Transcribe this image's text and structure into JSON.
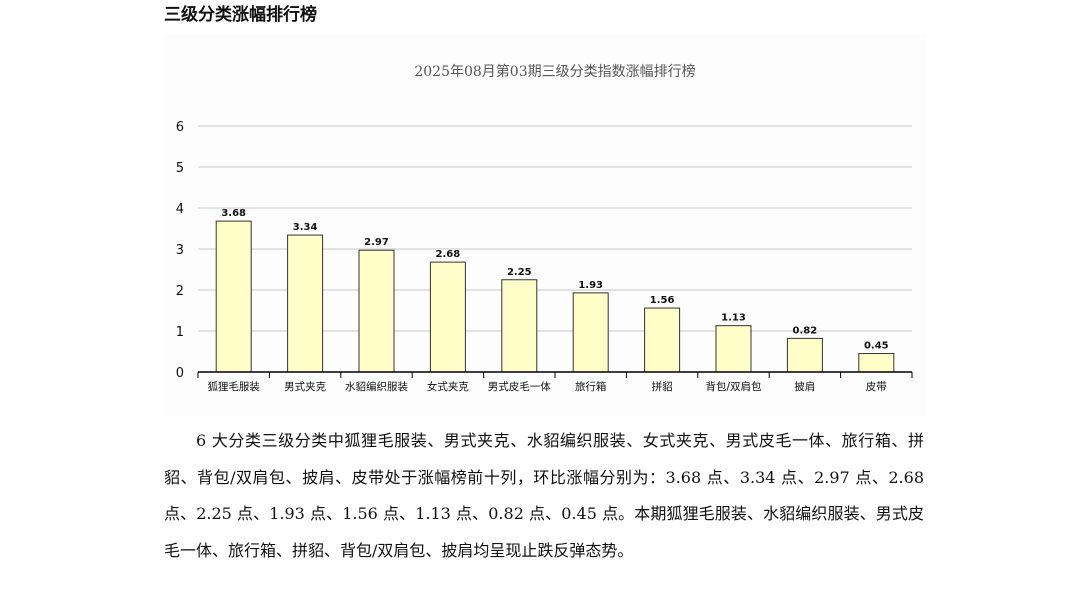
{
  "section_title": "三级分类涨幅排行榜",
  "paragraph": "6 大分类三级分类中狐狸毛服装、男式夹克、水貂编织服装、女式夹克、男式皮毛一体、旅行箱、拼貂、背包/双肩包、披肩、皮带处于涨幅榜前十列，环比涨幅分别为：3.68 点、3.34 点、2.97 点、2.68 点、2.25 点、1.93 点、1.56 点、1.13 点、0.82 点、0.45 点。本期狐狸毛服装、水貂编织服装、男式皮毛一体、旅行箱、拼貂、背包/双肩包、披肩均呈现止跌反弹态势。",
  "chart_data": {
    "type": "bar",
    "title": "2025年08月第03期三级分类指数涨幅排行榜",
    "categories": [
      "狐狸毛服装",
      "男式夹克",
      "水貂编织服装",
      "女式夹克",
      "男式皮毛一体",
      "旅行箱",
      "拼貂",
      "背包/双肩包",
      "披肩",
      "皮带"
    ],
    "values": [
      3.68,
      3.34,
      2.97,
      2.68,
      2.25,
      1.93,
      1.56,
      1.13,
      0.82,
      0.45
    ],
    "value_labels": [
      "3.68",
      "3.34",
      "2.97",
      "2.68",
      "2.25",
      "1.93",
      "1.56",
      "1.13",
      "0.82",
      "0.45"
    ],
    "y_ticks": [
      "0",
      "1",
      "2",
      "3",
      "4",
      "5",
      "6"
    ],
    "ylim": [
      0,
      6
    ],
    "grid": true,
    "legend": "none",
    "colors": {
      "bar_fill": "#fffdc8",
      "bar_stroke": "#333333",
      "grid": "#c8c8c8",
      "title": "#555555"
    }
  }
}
